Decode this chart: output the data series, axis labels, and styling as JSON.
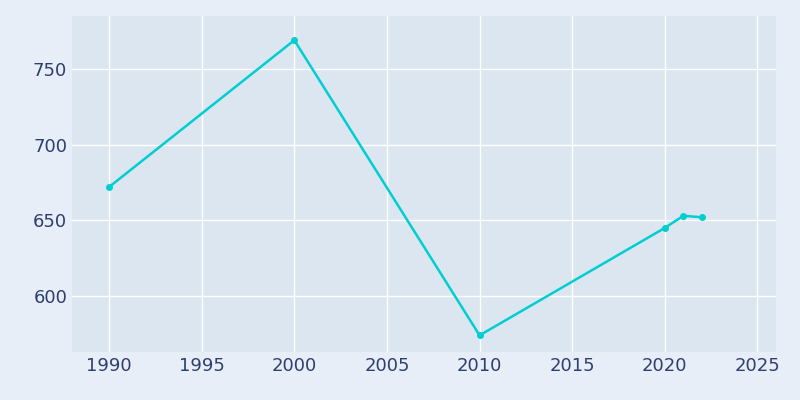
{
  "years": [
    1990,
    2000,
    2010,
    2020,
    2021,
    2022
  ],
  "population": [
    672,
    769,
    574,
    645,
    653,
    652
  ],
  "line_color": "#00CED1",
  "marker": "o",
  "marker_size": 4,
  "line_width": 1.8,
  "bg_color": "#E8EEF7",
  "plot_bg_color": "#DCE6F0",
  "grid_color": "#FFFFFF",
  "xlabel": "",
  "ylabel": "",
  "xlim": [
    1988,
    2026
  ],
  "ylim": [
    563,
    785
  ],
  "xticks": [
    1990,
    1995,
    2000,
    2005,
    2010,
    2015,
    2020,
    2025
  ],
  "yticks": [
    600,
    650,
    700,
    750
  ],
  "tick_label_color": "#2E3E6E",
  "tick_fontsize": 13
}
